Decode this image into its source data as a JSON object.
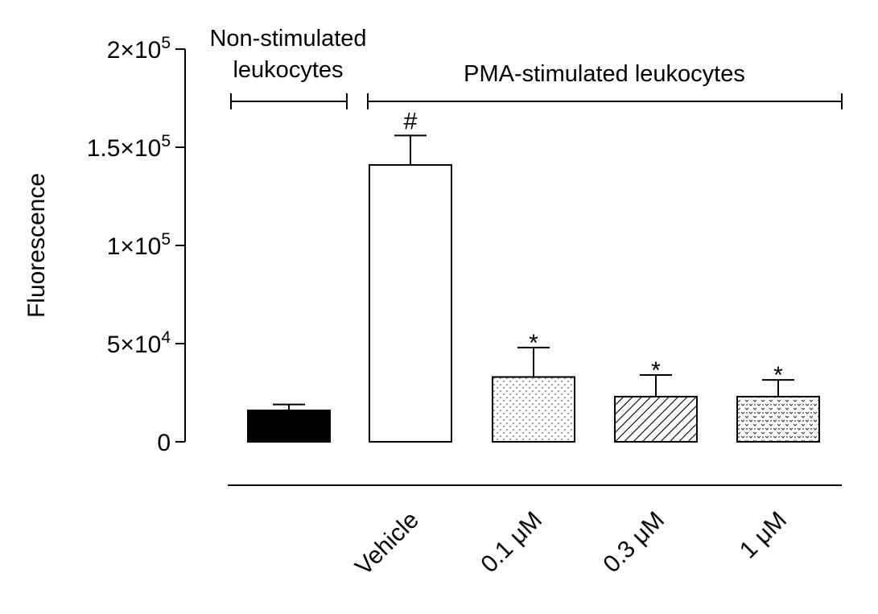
{
  "chart_data": {
    "type": "bar",
    "title": "",
    "xlabel": "",
    "ylabel": "Fluorescence",
    "ylim": [
      0,
      200000
    ],
    "y_ticks": [
      {
        "value": 0,
        "base": "0",
        "exp": ""
      },
      {
        "value": 50000,
        "base": "5×10",
        "exp": "4"
      },
      {
        "value": 100000,
        "base": "1×10",
        "exp": "5"
      },
      {
        "value": 150000,
        "base": "1.5×10",
        "exp": "5"
      },
      {
        "value": 200000,
        "base": "2×10",
        "exp": "5"
      }
    ],
    "categories": [
      "",
      "Vehicle",
      "0.1 μM",
      "0.3 μM",
      "1 μM"
    ],
    "values": [
      16000,
      141000,
      33000,
      23000,
      23000
    ],
    "errors": [
      3000,
      15000,
      15000,
      11000,
      8500
    ],
    "fills": [
      "solid",
      "white",
      "dots",
      "hatch",
      "speckle"
    ],
    "significance": [
      "",
      "#",
      "*",
      "*",
      "*"
    ],
    "groups": [
      {
        "label_lines": [
          "Non-stimulated",
          "leukocytes"
        ],
        "from": 0,
        "to": 0
      },
      {
        "label_lines": [
          "PMA-stimulated leukocytes"
        ],
        "from": 1,
        "to": 4
      }
    ]
  }
}
